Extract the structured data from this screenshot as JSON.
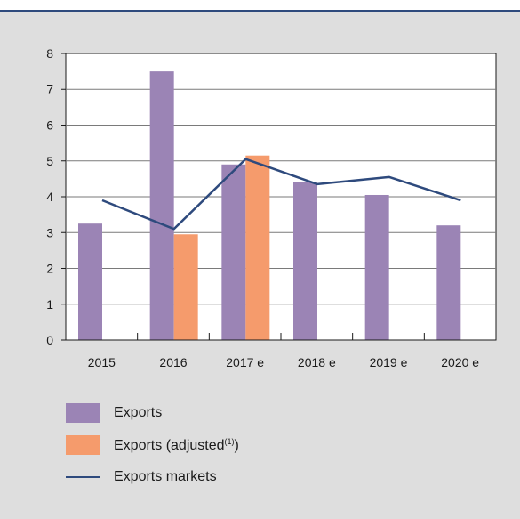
{
  "colors": {
    "exports": "#9b84b5",
    "exports_adjusted": "#f59b6c",
    "exports_markets": "#2e4a7d",
    "panel": "#dedede"
  },
  "chart_data": {
    "type": "bar",
    "categories": [
      "2015",
      "2016",
      "2017 e",
      "2018 e",
      "2019 e",
      "2020 e"
    ],
    "series": [
      {
        "name": "Exports",
        "kind": "bar",
        "values": [
          3.25,
          7.5,
          4.9,
          4.4,
          4.05,
          3.2
        ]
      },
      {
        "name": "Exports (adjusted",
        "superscript": "(1)",
        "name_suffix": ")",
        "kind": "bar",
        "values": [
          null,
          2.95,
          5.15,
          null,
          null,
          null
        ]
      },
      {
        "name": "Exports markets",
        "kind": "line",
        "values": [
          3.9,
          3.1,
          5.05,
          4.35,
          4.55,
          3.9
        ]
      }
    ],
    "ylim": [
      0,
      8
    ],
    "yticks": [
      "0",
      "1",
      "2",
      "3",
      "4",
      "5",
      "6",
      "7",
      "8"
    ],
    "grid": true,
    "legend_position": "bottom"
  }
}
